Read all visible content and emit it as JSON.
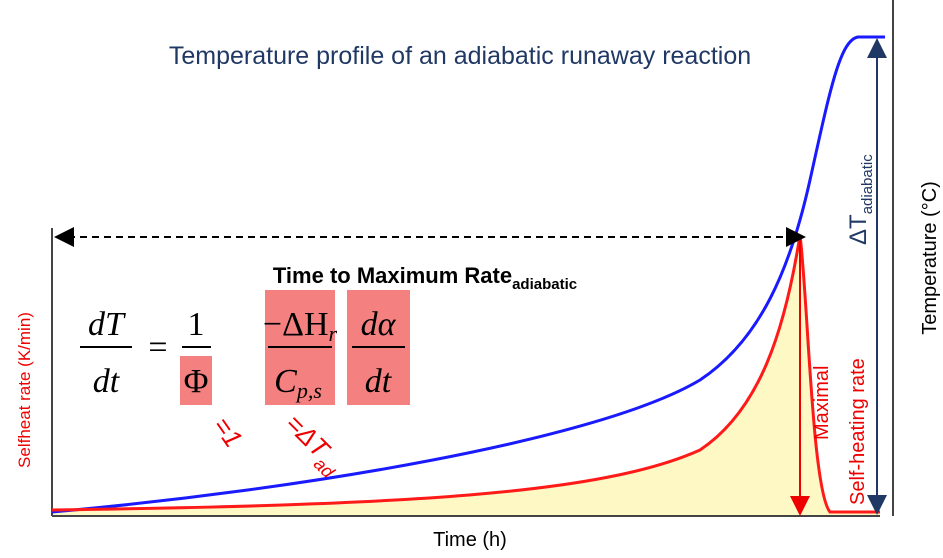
{
  "title": "Temperature profile of an adiabatic runaway reaction",
  "x_axis_label": "Time  (h)",
  "y_axis_label": "Selfheat rate (K/min)",
  "y2_axis_label": "Temperature (°C)",
  "time_to_max_rate": {
    "text": "Time to Maximum Rate",
    "subscript": "adiabatic"
  },
  "delta_t": {
    "text": "ΔT",
    "subscript": "adiabatic"
  },
  "max_rate_label": [
    "Maximal",
    "Self-heating rate"
  ],
  "equation": {
    "lhs_num": "dT",
    "lhs_den": "dt",
    "equals": "=",
    "f1_num": "1",
    "f1_den": "Φ",
    "f2_num": "−ΔH",
    "f2_num_sub": "r",
    "f2_den": "C",
    "f2_den_sub": "p,s",
    "f3_num": "dα",
    "f3_den": "dt"
  },
  "notes": {
    "phi": "=1",
    "dt_ad": "=ΔT",
    "dt_ad_sub": "ad"
  }
}
